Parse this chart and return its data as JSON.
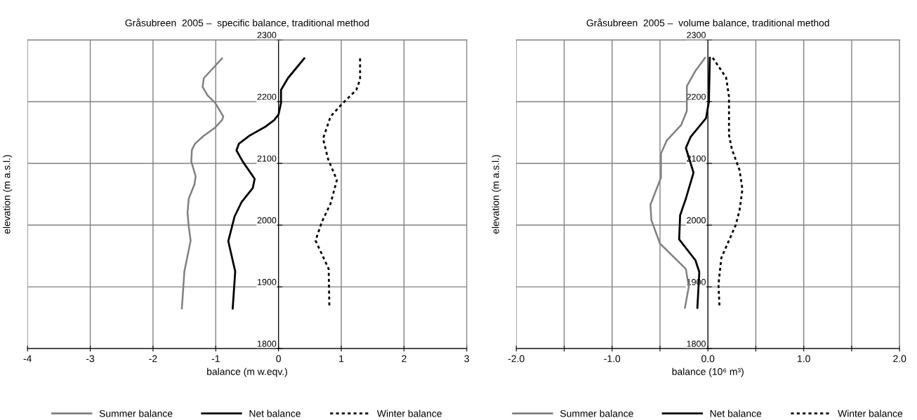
{
  "chart_data": [
    {
      "type": "line",
      "title": "Gråsubreen  2005 –  specific balance, traditional method",
      "xlabel": "balance (m w.eqv.)",
      "ylabel": "elevation (m a.s.l.)",
      "xlim": [
        -4,
        3
      ],
      "xticks": [
        -4,
        -3,
        -2,
        -1,
        0,
        1,
        2,
        3
      ],
      "ylim": [
        1800,
        2300
      ],
      "yticks": [
        1800,
        1900,
        2000,
        2100,
        2200,
        2300
      ],
      "grid": true,
      "legend": "bottom",
      "series": [
        {
          "name": "Summer balance",
          "color": "#808080",
          "line_style": "solid",
          "x": [
            -0.9,
            -1.0,
            -1.19,
            -1.21,
            -1.13,
            -1.01,
            -0.88,
            -0.9,
            -1.01,
            -1.2,
            -1.33,
            -1.38,
            -1.39,
            -1.32,
            -1.34,
            -1.43,
            -1.45,
            -1.43,
            -1.4,
            -1.5,
            -1.54
          ],
          "values": [
            2270,
            2259,
            2238,
            2224,
            2210,
            2198,
            2176,
            2170,
            2158,
            2144,
            2132,
            2122,
            2103,
            2079,
            2066,
            2043,
            2020,
            1997,
            1975,
            1925,
            1865
          ]
        },
        {
          "name": "Net balance",
          "color": "#000000",
          "line_style": "solid",
          "x": [
            0.41,
            0.15,
            0.04,
            0.04,
            0.0,
            -0.07,
            -0.2,
            -0.46,
            -0.63,
            -0.67,
            -0.57,
            -0.38,
            -0.41,
            -0.59,
            -0.7,
            -0.8,
            -0.69,
            -0.73
          ],
          "values": [
            2270,
            2238,
            2219,
            2198,
            2179,
            2170,
            2160,
            2145,
            2132,
            2121,
            2103,
            2075,
            2060,
            2037,
            2014,
            1974,
            1925,
            1865
          ]
        },
        {
          "name": "Winter balance",
          "color": "#000000",
          "line_style": "dashed",
          "x": [
            1.3,
            1.3,
            1.24,
            1.0,
            0.83,
            0.71,
            0.79,
            0.93,
            0.83,
            0.69,
            0.59,
            0.8,
            0.81
          ],
          "values": [
            2270,
            2236,
            2219,
            2195,
            2176,
            2140,
            2107,
            2073,
            2035,
            2005,
            1975,
            1929,
            1870
          ]
        }
      ]
    },
    {
      "type": "line",
      "title": "Gråsubreen  2005 –  volume balance, traditional method",
      "xlabel": "balance (10⁶ m³)",
      "ylabel": "elevation (m a.s.l.)",
      "xlim": [
        -2,
        2
      ],
      "xticks": [
        {
          "value": -2,
          "label": "-2.0"
        },
        {
          "value": -1.5,
          "label": null
        },
        {
          "value": -1,
          "label": "-1.0"
        },
        {
          "value": -0.5,
          "label": null
        },
        {
          "value": 0,
          "label": "0.0"
        },
        {
          "value": 0.5,
          "label": null
        },
        {
          "value": 1,
          "label": "1.0"
        },
        {
          "value": 1.5,
          "label": null
        },
        {
          "value": 2,
          "label": "2.0"
        }
      ],
      "ylim": [
        1800,
        2300
      ],
      "yticks": [
        1800,
        1900,
        2000,
        2100,
        2200,
        2300
      ],
      "grid": true,
      "legend": "bottom",
      "series": [
        {
          "name": "Summer balance",
          "color": "#808080",
          "line_style": "solid",
          "x": [
            -0.03,
            -0.13,
            -0.22,
            -0.22,
            -0.28,
            -0.43,
            -0.49,
            -0.49,
            -0.6,
            -0.59,
            -0.5,
            -0.23,
            -0.2,
            -0.24
          ],
          "values": [
            2271,
            2250,
            2225,
            2185,
            2162,
            2137,
            2116,
            2077,
            2033,
            2008,
            1970,
            1929,
            1900,
            1866
          ]
        },
        {
          "name": "Net balance",
          "color": "#000000",
          "line_style": "solid",
          "x": [
            0.02,
            0.01,
            -0.02,
            -0.18,
            -0.23,
            -0.15,
            -0.23,
            -0.29,
            -0.3,
            -0.13,
            -0.09,
            -0.11
          ],
          "values": [
            2271,
            2200,
            2173,
            2143,
            2125,
            2085,
            2043,
            2016,
            1977,
            1943,
            1924,
            1866
          ]
        },
        {
          "name": "Winter balance",
          "color": "#000000",
          "line_style": "dashed",
          "x": [
            0.05,
            0.19,
            0.22,
            0.22,
            0.25,
            0.33,
            0.36,
            0.33,
            0.29,
            0.14,
            0.11,
            0.12
          ],
          "values": [
            2271,
            2239,
            2208,
            2146,
            2123,
            2089,
            2058,
            2024,
            2000,
            1947,
            1904,
            1870
          ]
        }
      ]
    }
  ]
}
